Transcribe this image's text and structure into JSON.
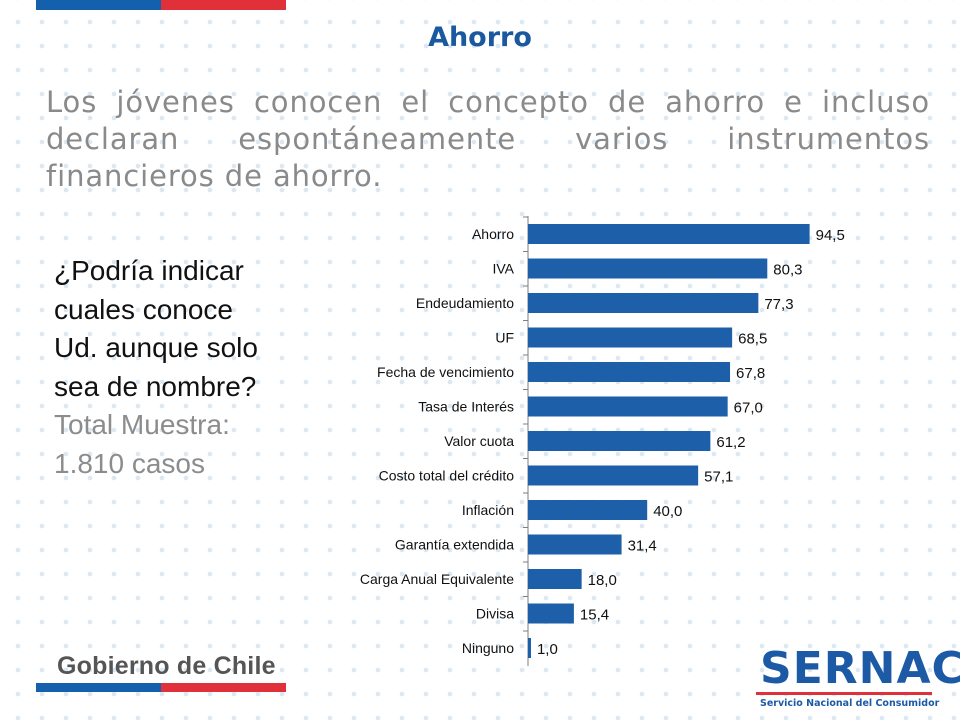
{
  "slide": {
    "title": "Ahorro",
    "headline": "Los jóvenes conocen el concepto de ahorro e incluso declaran espontáneamente varios instrumentos financieros de ahorro.",
    "question": "¿Podría indicar cuales conoce Ud. aunque solo sea de nombre?",
    "sample_label": "Total Muestra:",
    "sample_value": "1.810 casos"
  },
  "footer": {
    "gobierno": "Gobierno de Chile",
    "sernac_name": "SERNAC",
    "sernac_tagline": "Servicio Nacional del Consumidor"
  },
  "colors": {
    "bar": "#1d5fa8",
    "title": "#1a58a0",
    "headline": "#8a8a8a",
    "question": "#111111",
    "sample": "#8c8c8c",
    "flag_blue": "#1560ad",
    "flag_red": "#e0303a",
    "gobierno": "#555555",
    "sernac_blue": "#1c5aa6",
    "sernac_red": "#e0303a"
  },
  "chart_data": {
    "type": "bar",
    "orientation": "horizontal",
    "categories": [
      "Ahorro",
      "IVA",
      "Endeudamiento",
      "UF",
      "Fecha  de vencimiento",
      "Tasa de Interés",
      "Valor cuota",
      "Costo total del crédito",
      "Inflación",
      "Garantía extendida",
      "Carga Anual Equivalente",
      "Divisa",
      "Ninguno"
    ],
    "values": [
      94.5,
      80.3,
      77.3,
      68.5,
      67.8,
      67.0,
      61.2,
      57.1,
      40.0,
      31.4,
      18.0,
      15.4,
      1.0
    ],
    "value_labels": [
      "94,5",
      "80,3",
      "77,3",
      "68,5",
      "67,8",
      "67,0",
      "61,2",
      "57,1",
      "40,0",
      "31,4",
      "18,0",
      "15,4",
      "1,0"
    ],
    "xlim": [
      0,
      100
    ],
    "grid": false,
    "legend": "none"
  }
}
